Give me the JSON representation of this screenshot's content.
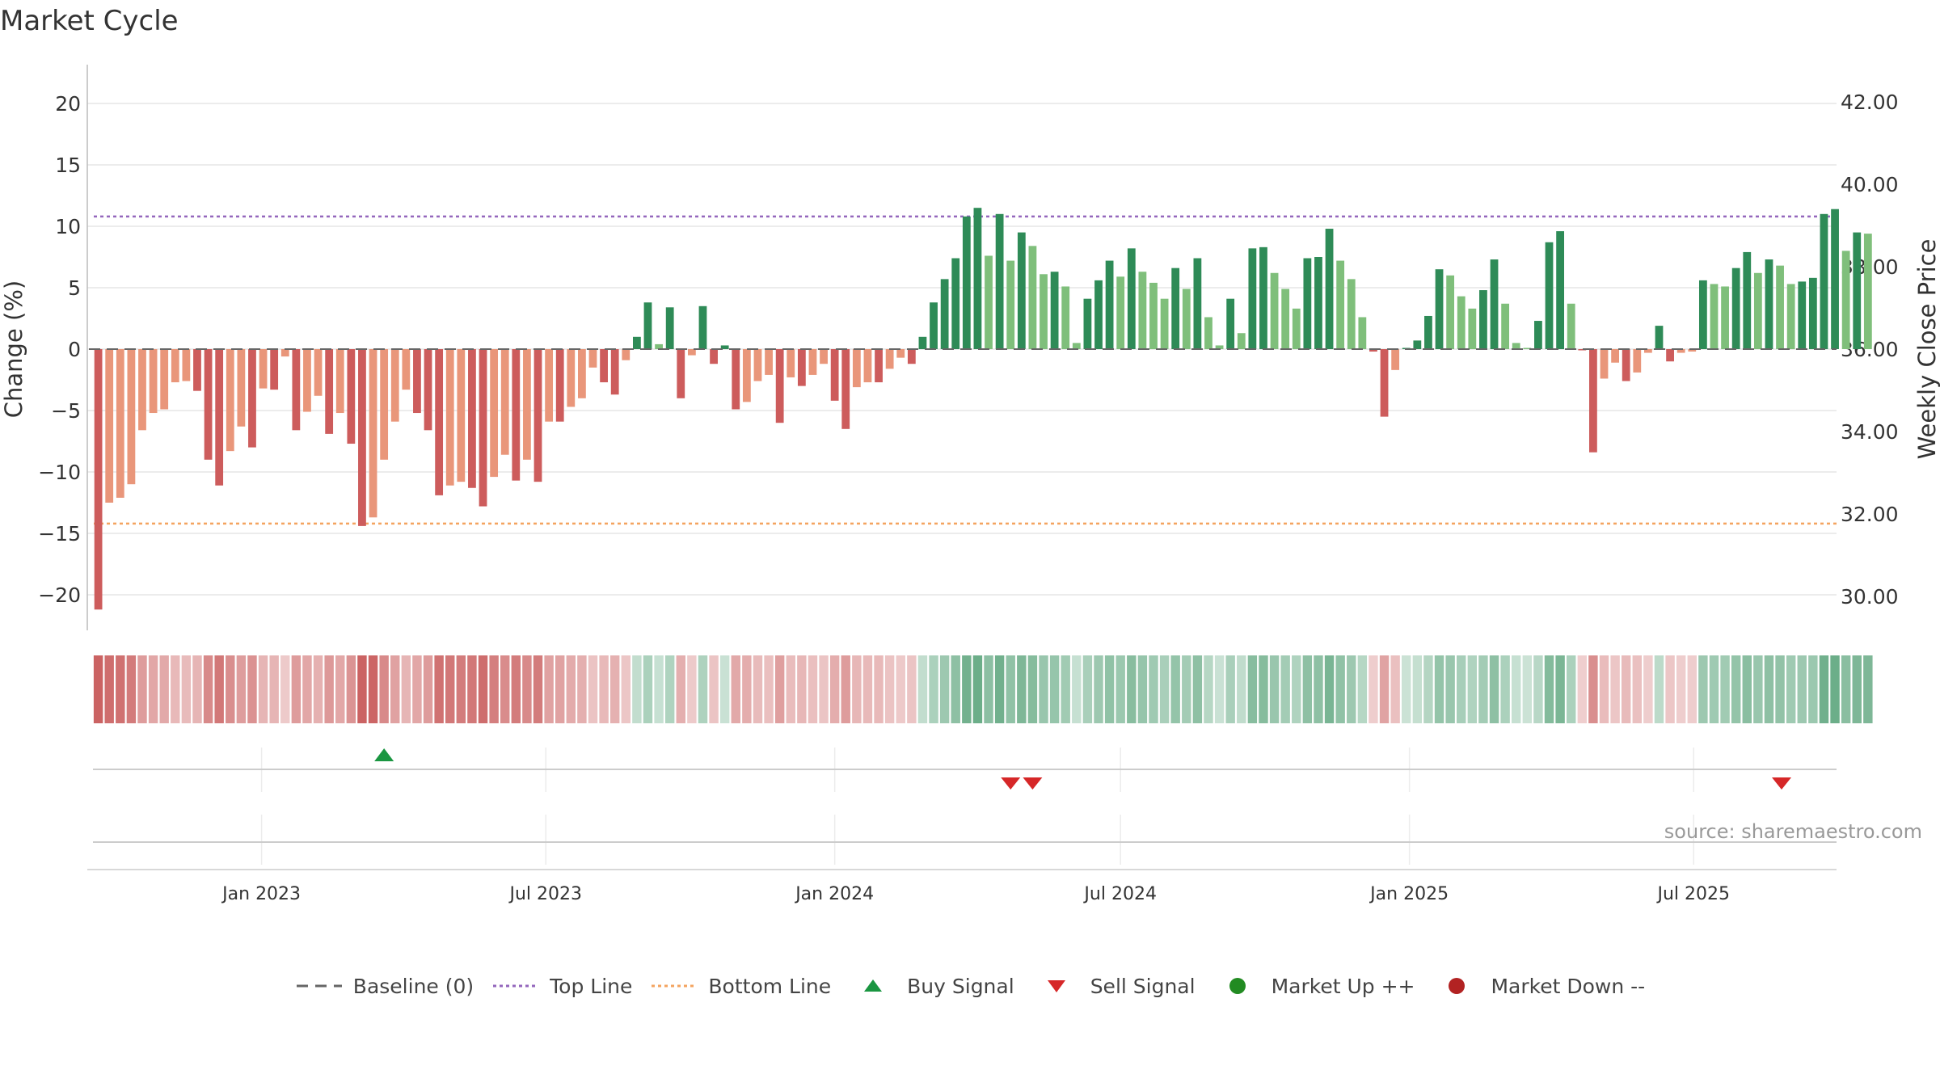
{
  "title": "Market Cycle",
  "source": "source: sharemaestro.com",
  "legend": [
    {
      "label": "Baseline (0)",
      "icon": "dash-line-icon",
      "color": "#666666"
    },
    {
      "label": "Top Line",
      "icon": "dotted-line-icon",
      "color": "#9467bd"
    },
    {
      "label": "Bottom Line",
      "icon": "dotted-line-icon",
      "color": "#f4a460"
    },
    {
      "label": "Buy Signal",
      "icon": "triangle-up-icon",
      "color": "#1a9641"
    },
    {
      "label": "Sell Signal",
      "icon": "triangle-down-icon",
      "color": "#d62728"
    },
    {
      "label": "Market Up ++",
      "icon": "circle-icon",
      "color": "#228b22"
    },
    {
      "label": "Market Down --",
      "icon": "circle-icon",
      "color": "#b22222"
    }
  ],
  "chart_data": {
    "type": "bar",
    "title": "Market Cycle",
    "ylabel": "Change (%)",
    "y2label": "Weekly Close Price",
    "ylim": [
      -23,
      23
    ],
    "yticks": [
      20,
      15,
      10,
      5,
      0,
      -5,
      -10,
      -15,
      -20
    ],
    "y2lim": [
      28.8,
      42.8
    ],
    "y2ticks": [
      "42.00",
      "40.00",
      "38.00",
      "36.00",
      "34.00",
      "32.00",
      "30.00"
    ],
    "y2tick_values": [
      42,
      40,
      38,
      36,
      34,
      32,
      30
    ],
    "top_line": 10.8,
    "bottom_line": -14.2,
    "baseline": 0,
    "grid": true,
    "legend_position": "bottom",
    "xlim": [
      "2022-09-12",
      "2025-09-30"
    ],
    "xticks": [
      {
        "label": "Jan 2023",
        "date": "2023-01-01"
      },
      {
        "label": "Jul 2023",
        "date": "2023-07-01"
      },
      {
        "label": "Jan 2024",
        "date": "2024-01-01"
      },
      {
        "label": "Jul 2024",
        "date": "2024-07-01"
      },
      {
        "label": "Jan 2025",
        "date": "2025-01-01"
      },
      {
        "label": "Jul 2025",
        "date": "2025-07-01"
      }
    ],
    "first_week": "2022-09-19",
    "week_interval_days": 7,
    "values": [
      -21.2,
      -12.5,
      -12.1,
      -11.0,
      -6.6,
      -5.2,
      -4.9,
      -2.7,
      -2.6,
      -3.4,
      -9.0,
      -11.1,
      -8.3,
      -6.3,
      -8.0,
      -3.2,
      -3.3,
      -0.6,
      -6.6,
      -5.1,
      -3.8,
      -6.9,
      -5.2,
      -7.7,
      -14.4,
      -13.7,
      -9.0,
      -5.9,
      -3.3,
      -5.2,
      -6.6,
      -11.9,
      -11.1,
      -10.8,
      -11.3,
      -12.8,
      -10.4,
      -8.6,
      -10.7,
      -9.0,
      -10.8,
      -5.9,
      -5.9,
      -4.7,
      -4.0,
      -1.5,
      -2.7,
      -3.7,
      -0.9,
      1.0,
      3.8,
      0.4,
      3.4,
      -4.0,
      -0.5,
      3.5,
      -1.2,
      0.3,
      -4.9,
      -4.3,
      -2.6,
      -2.1,
      -6.0,
      -2.3,
      -3.0,
      -2.1,
      -1.2,
      -4.2,
      -6.5,
      -3.1,
      -2.7,
      -2.7,
      -1.6,
      -0.7,
      -1.2,
      1.0,
      3.8,
      5.7,
      7.4,
      10.8,
      11.5,
      7.6,
      11.0,
      7.2,
      9.5,
      8.4,
      6.1,
      6.3,
      5.1,
      0.5,
      4.1,
      5.6,
      7.2,
      5.9,
      8.2,
      6.3,
      5.4,
      4.1,
      6.6,
      4.9,
      7.4,
      2.6,
      0.3,
      4.1,
      1.3,
      8.2,
      8.3,
      6.2,
      4.9,
      3.3,
      7.4,
      7.5,
      9.8,
      7.2,
      5.7,
      2.6,
      -0.2,
      -5.5,
      -1.7,
      0.1,
      0.7,
      2.7,
      6.5,
      6.0,
      4.3,
      3.3,
      4.8,
      7.3,
      3.7,
      0.5,
      0.1,
      2.3,
      8.7,
      9.6,
      3.7,
      -0.1,
      -8.4,
      -2.4,
      -1.1,
      -2.6,
      -1.9,
      -0.3,
      1.9,
      -1.0,
      -0.3,
      -0.2,
      5.6,
      5.3,
      5.1,
      6.6,
      7.9,
      6.2,
      7.3,
      6.8,
      5.3,
      5.5,
      5.8,
      11.0,
      11.4,
      8.0,
      9.5,
      9.4
    ],
    "price": [],
    "buy_signals": [
      "2023-03-20"
    ],
    "sell_signals": [
      "2024-04-22",
      "2024-05-06",
      "2025-08-26"
    ],
    "colors": {
      "up_strong": "#2e8b57",
      "up_weak": "#7fbf7b",
      "down_strong": "#cd5c5c",
      "down_weak": "#e9967a",
      "top_line": "#9467bd",
      "bottom_line": "#f4a460",
      "baseline": "#666666",
      "buy": "#1a9641",
      "sell": "#d62728"
    }
  }
}
